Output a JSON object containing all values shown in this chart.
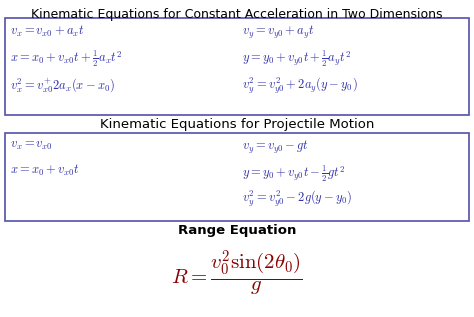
{
  "title1": "Kinematic Equations for Constant Acceleration in Two Dimensions",
  "title2": "Kinematic Equations for Projectile Motion",
  "title3": "Range Equation",
  "title_color": "#000000",
  "box_color": "#5050aa",
  "eq_color": "#3333aa",
  "range_eq_color": "#8b0000",
  "bg_color": "#ffffff",
  "box1_left_eqs": [
    "$v_x = v_{x0} + a_x t$",
    "$x = x_0 + v_{x0}t + \\frac{1}{2}a_x t^2$",
    "$v_x^2 = v_{x0}^{+}2a_x(x - x_0)$"
  ],
  "box1_right_eqs": [
    "$v_y = v_{y0} + a_y t$",
    "$y = y_0 + v_{y0}t + \\frac{1}{2}a_y t^2$",
    "$v_y^2 = v_{y0}^2 + 2a_y(y - y_0)$"
  ],
  "box2_left_eqs": [
    "$v_x = v_{x0}$",
    "$x = x_0 + v_{x0}t$"
  ],
  "box2_right_eqs": [
    "$v_y = v_{y0} - gt$",
    "$y = y_0 + v_{y0}t - \\frac{1}{2}gt^2$",
    "$v_y^2 = v_{y0}^2 - 2g(y - y_0)$"
  ],
  "range_eq": "$R = \\dfrac{v_0^2 \\sin(2\\theta_0)}{g}$",
  "title1_fs": 9.0,
  "title2_fs": 9.5,
  "title3_fs": 9.5,
  "eq_fs": 9.0,
  "range_fs": 15
}
